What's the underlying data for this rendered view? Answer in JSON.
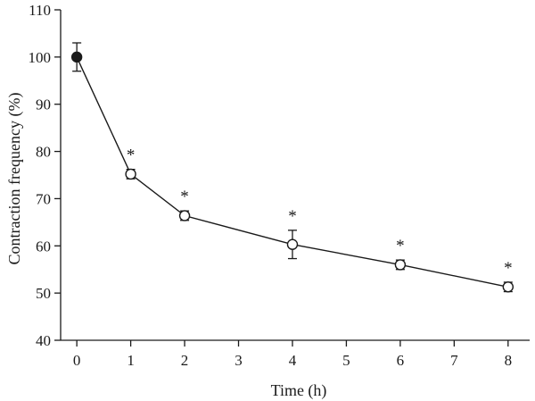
{
  "chart_data": {
    "type": "line",
    "xlabel": "Time (h)",
    "ylabel": "Contraction frequency (%)",
    "xlim": [
      -0.3,
      8.4
    ],
    "ylim": [
      40,
      110
    ],
    "x_ticks": [
      0,
      1,
      2,
      3,
      4,
      5,
      6,
      7,
      8
    ],
    "y_ticks": [
      40,
      50,
      60,
      70,
      80,
      90,
      100,
      110
    ],
    "grid": false,
    "series": [
      {
        "points": [
          {
            "x": 0,
            "y": 100,
            "err": 3.0,
            "marker": "filled",
            "annotation": ""
          },
          {
            "x": 1,
            "y": 75.2,
            "err": 1.0,
            "marker": "open",
            "annotation": "*"
          },
          {
            "x": 2,
            "y": 66.4,
            "err": 1.0,
            "marker": "open",
            "annotation": "*"
          },
          {
            "x": 4,
            "y": 60.3,
            "err": 3.0,
            "marker": "open",
            "annotation": "*"
          },
          {
            "x": 6,
            "y": 56.0,
            "err": 1.0,
            "marker": "open",
            "annotation": "*"
          },
          {
            "x": 8,
            "y": 51.3,
            "err": 1.0,
            "marker": "open",
            "annotation": "*"
          }
        ]
      }
    ]
  }
}
